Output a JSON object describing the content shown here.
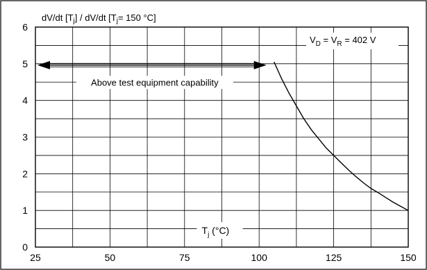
{
  "chart_data": {
    "type": "line",
    "title": "",
    "ylabel": "dV/dt [Tj] / dV/dt [Tj= 150 °C]",
    "ylabel_parts": {
      "prefix": "dV/dt [T",
      "sub": "j",
      "suffix": "] / dV/dt [T",
      "sub2": "j",
      "suffix2": "= 150 °C]"
    },
    "xlabel_parts": {
      "main": "T",
      "sub": "j",
      "suffix": " (°C)"
    },
    "xlim": [
      25,
      150
    ],
    "ylim": [
      0,
      6
    ],
    "x_ticks": [
      25,
      50,
      75,
      100,
      125,
      150
    ],
    "y_ticks": [
      0,
      1,
      2,
      3,
      4,
      5,
      6
    ],
    "x_tick_labels": [
      "25",
      "50",
      "75",
      "100",
      "125",
      "150"
    ],
    "y_tick_labels": [
      "0",
      "1",
      "2",
      "3",
      "4",
      "5",
      "6"
    ],
    "grid": true,
    "x_grid_step": 12.5,
    "y_grid_step": 0.5,
    "series": [
      {
        "x": [
          105,
          107.5,
          110,
          112.5,
          115,
          117.5,
          120,
          122.5,
          125,
          127.5,
          130,
          132.5,
          135,
          137.5,
          140,
          142.5,
          145,
          147.5,
          150
        ],
        "y": [
          5.05,
          4.6,
          4.2,
          3.85,
          3.5,
          3.2,
          2.95,
          2.7,
          2.5,
          2.3,
          2.1,
          1.92,
          1.75,
          1.6,
          1.48,
          1.35,
          1.22,
          1.11,
          1.0
        ]
      }
    ],
    "annotations": {
      "range_arrow": {
        "x_from": 25,
        "x_to": 105,
        "y": 5.0
      },
      "range_label": {
        "text": "Above test equipment capability",
        "x": 65,
        "y": 4.5
      },
      "condition": {
        "a": "V",
        "a_sub": "D",
        "eq": " = V",
        "b_sub": "R",
        "rest": " = 402 V"
      }
    }
  }
}
